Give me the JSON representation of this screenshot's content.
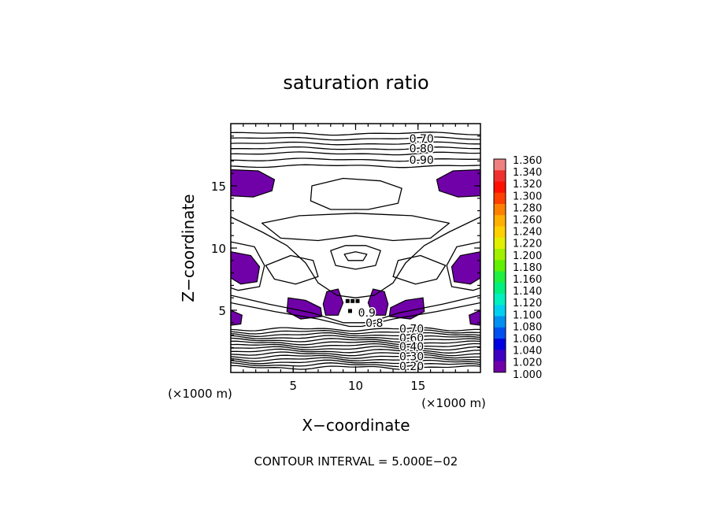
{
  "chart_data": {
    "type": "heatmap",
    "title": "saturation ratio",
    "xlabel": "X−coordinate",
    "ylabel": "Z−coordinate",
    "x_unit": "(×1000 m)",
    "y_unit": "(×1000 m)",
    "xlim": [
      0,
      20
    ],
    "ylim": [
      0,
      20
    ],
    "xticks": [
      5,
      10,
      15
    ],
    "yticks": [
      5,
      10,
      15
    ],
    "contour_interval_text": "CONTOUR INTERVAL = 5.000E−02",
    "contour_labels": [
      {
        "text": "0.70",
        "x": 14.3,
        "z": 18.8
      },
      {
        "text": "0.80",
        "x": 14.3,
        "z": 18.0
      },
      {
        "text": "0.90",
        "x": 14.3,
        "z": 17.1
      },
      {
        "text": "0.9",
        "x": 10.2,
        "z": 4.8
      },
      {
        "text": "0.8",
        "x": 10.8,
        "z": 4.0
      },
      {
        "text": "0.70",
        "x": 13.5,
        "z": 3.5
      },
      {
        "text": "0.60",
        "x": 13.5,
        "z": 2.8
      },
      {
        "text": "0.40",
        "x": 13.5,
        "z": 2.1
      },
      {
        "text": "0.30",
        "x": 13.5,
        "z": 1.3
      },
      {
        "text": "0.20",
        "x": 13.5,
        "z": 0.5
      }
    ],
    "colorbar": {
      "labels": [
        "1.360",
        "1.340",
        "1.320",
        "1.300",
        "1.280",
        "1.260",
        "1.240",
        "1.220",
        "1.200",
        "1.180",
        "1.160",
        "1.140",
        "1.120",
        "1.100",
        "1.080",
        "1.060",
        "1.040",
        "1.020",
        "1.000"
      ],
      "colors": [
        "#f08080",
        "#f03030",
        "#ff1000",
        "#ff4000",
        "#ff8000",
        "#ffb000",
        "#ffd000",
        "#e0f000",
        "#a0f000",
        "#60f000",
        "#20f040",
        "#00f080",
        "#00f0c0",
        "#00d0f0",
        "#0090f0",
        "#0050f0",
        "#0000e0",
        "#4000c0",
        "#7000a8"
      ]
    },
    "filled_regions_color": "#7000a8"
  }
}
